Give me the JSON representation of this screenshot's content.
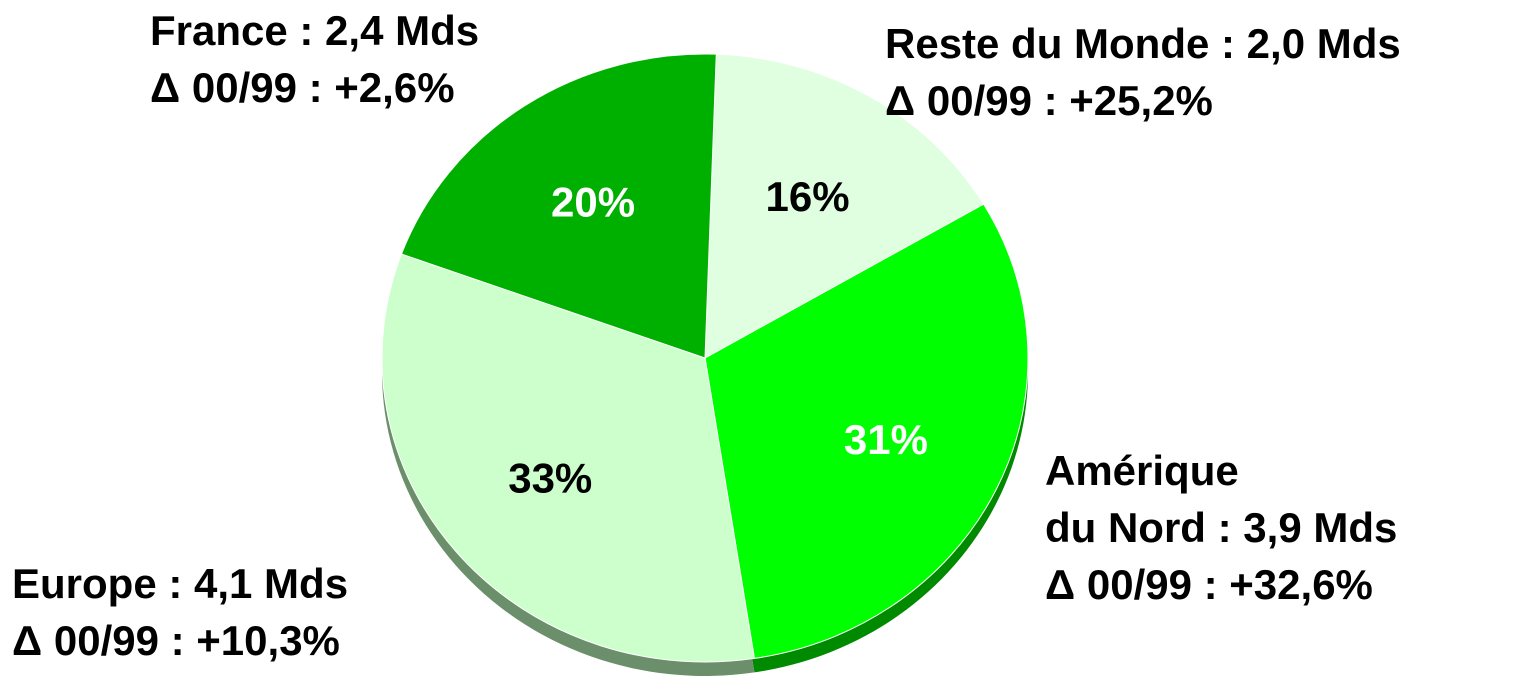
{
  "chart_data": {
    "type": "pie",
    "values": [
      16,
      31,
      33,
      20
    ],
    "value_labels": [
      "16%",
      "31%",
      "33%",
      "20%"
    ],
    "colors": [
      "#e0ffe0",
      "#00ff00",
      "#ccffcc",
      "#00b000"
    ],
    "depth_colors": [
      "#a0c0a0",
      "#008a00",
      "#6b8f6b",
      "#006600"
    ],
    "value_label_colors": [
      "#000000",
      "#ffffff",
      "#000000",
      "#ffffff"
    ],
    "labels": [
      [
        "Reste du Monde : 2,0 Mds"
      ],
      [
        "Amérique",
        "du Nord : 3,9 Mds"
      ],
      [
        "Europe : 4,1 Mds"
      ],
      [
        "France : 2,4 Mds"
      ]
    ],
    "deltas": [
      "Δ 00/99 : +25,2%",
      "Δ 00/99 : +32,6%",
      "Δ 00/99 : +10,3%",
      "Δ 00/99 : +2,6%"
    ]
  }
}
